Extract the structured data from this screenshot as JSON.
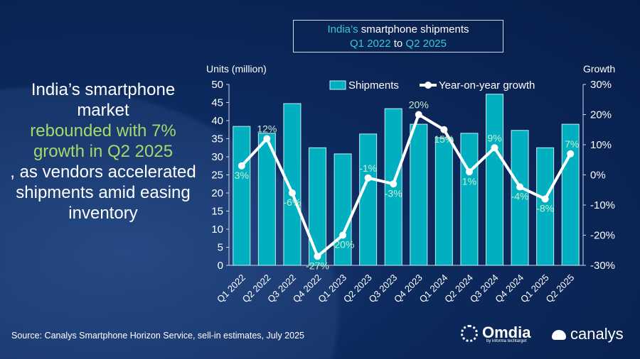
{
  "headline": {
    "part1": "India’s smartphone market ",
    "highlight1": "rebounded with 7% growth in Q2 2025",
    "part2": ", as vendors accelerated shipments amid easing inventory"
  },
  "title": {
    "line1_accent": "India’s",
    "line1_rest": " smartphone shipments",
    "q_start": "Q1 2022",
    "to": " to ",
    "q_end": "Q2 2025"
  },
  "source": "Source: Canalys Smartphone Horizon Service, sell-in estimates, July 2025",
  "logos": {
    "omdia": "Omdia",
    "omdia_sub": "by informa techtarget",
    "canalys": "canalys"
  },
  "colors": {
    "bar": "#00b0c0",
    "line": "#ffffff",
    "label": "#c6efce",
    "accent": "#3ec7d6"
  },
  "chart_data": {
    "type": "bar+line",
    "categories": [
      "Q1 2022",
      "Q2 2022",
      "Q3 2022",
      "Q4 2022",
      "Q1 2023",
      "Q2 2023",
      "Q3 2023",
      "Q4 2023",
      "Q1 2024",
      "Q2 2024",
      "Q3 2024",
      "Q4 2024",
      "Q1 2025",
      "Q2 2025"
    ],
    "series": [
      {
        "name": "Shipments",
        "type": "bar",
        "axis": "left",
        "values": [
          38.4,
          36.5,
          44.7,
          32.5,
          30.8,
          36.3,
          43.3,
          39.0,
          35.3,
          36.5,
          47.3,
          37.3,
          32.5,
          39.0
        ]
      },
      {
        "name": "Year-on-year growth",
        "type": "line",
        "axis": "right",
        "values": [
          3,
          12,
          -6,
          -27,
          -20,
          -1,
          -3,
          20,
          15,
          1,
          9,
          -4,
          -8,
          7
        ],
        "labels": [
          "3%",
          "12%",
          "-6%",
          "-27%",
          "-20%",
          "-1%",
          "-3%",
          "20%",
          "15%",
          "1%",
          "9%",
          "-4%",
          "-8%",
          "7%"
        ]
      }
    ],
    "ylabel": "Units (million)",
    "y2label": "Growth",
    "ylim": [
      0,
      50
    ],
    "yticks": [
      0,
      5,
      10,
      15,
      20,
      25,
      30,
      35,
      40,
      45,
      50
    ],
    "y2lim": [
      -30,
      30
    ],
    "y2ticks": [
      "-30%",
      "-20%",
      "-10%",
      "0%",
      "10%",
      "20%",
      "30%"
    ],
    "legend": "top",
    "grid": false
  }
}
